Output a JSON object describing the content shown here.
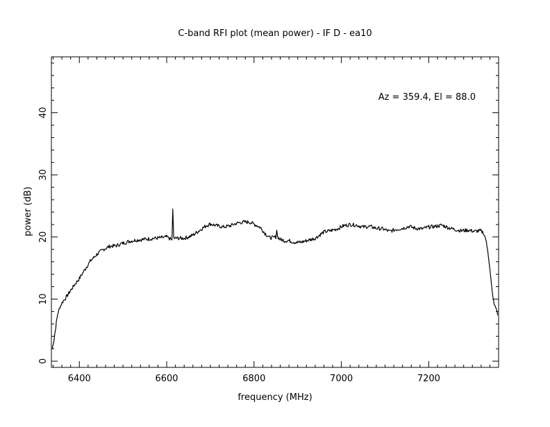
{
  "chart_data": {
    "type": "line",
    "title": "C-band RFI plot (mean power) - IF D - ea10",
    "annotation": "Az = 359.4, El = 88.0",
    "xlabel": "frequency (MHz)",
    "ylabel": "power (dB)",
    "xlim": [
      6336,
      7360
    ],
    "ylim": [
      -1,
      49
    ],
    "xticks": [
      6400,
      6600,
      6800,
      7000,
      7200
    ],
    "xtick_labels": [
      "6400",
      "6600",
      "6800",
      "7000",
      "7200"
    ],
    "yticks": [
      0,
      10,
      20,
      30,
      40
    ],
    "ytick_labels": [
      "0",
      "10",
      "20",
      "30",
      "40"
    ],
    "grid": false,
    "line_color": "#000000",
    "series": [
      {
        "x": [
          6338,
          6342,
          6346,
          6350,
          6356,
          6362,
          6370,
          6380,
          6390,
          6400,
          6412,
          6425,
          6440,
          6455,
          6470,
          6485,
          6500,
          6515,
          6530,
          6545,
          6560,
          6575,
          6590,
          6600,
          6608,
          6612,
          6614,
          6616,
          6618,
          6620,
          6630,
          6640,
          6650,
          6660,
          6670,
          6680,
          6690,
          6700,
          6715,
          6730,
          6745,
          6760,
          6775,
          6790,
          6805,
          6815,
          6825,
          6835,
          6845,
          6850,
          6852,
          6854,
          6860,
          6870,
          6880,
          6890,
          6900,
          6910,
          6920,
          6930,
          6940,
          6950,
          6960,
          6975,
          6990,
          7005,
          7020,
          7035,
          7050,
          7065,
          7080,
          7095,
          7110,
          7125,
          7140,
          7155,
          7170,
          7185,
          7200,
          7215,
          7230,
          7245,
          7260,
          7275,
          7290,
          7305,
          7318,
          7325,
          7330,
          7335,
          7340,
          7345,
          7350,
          7355,
          7358
        ],
        "y": [
          2.0,
          3.5,
          5.5,
          7.5,
          8.8,
          9.6,
          10.3,
          11.4,
          12.4,
          13.3,
          14.7,
          16.1,
          17.2,
          18.0,
          18.5,
          18.6,
          19.0,
          19.3,
          19.5,
          19.6,
          19.7,
          19.8,
          19.9,
          20.0,
          19.7,
          19.5,
          24.5,
          20.0,
          19.6,
          19.8,
          19.8,
          19.8,
          20.0,
          20.3,
          20.8,
          21.3,
          21.8,
          22.1,
          21.8,
          21.6,
          21.8,
          22.2,
          22.4,
          22.4,
          21.9,
          21.5,
          20.6,
          19.9,
          19.9,
          20.0,
          21.2,
          20.0,
          19.6,
          19.4,
          19.4,
          19.2,
          19.1,
          19.2,
          19.4,
          19.6,
          19.8,
          20.3,
          20.8,
          21.0,
          21.3,
          21.8,
          22.0,
          21.9,
          21.6,
          21.7,
          21.4,
          21.3,
          20.9,
          21.2,
          21.4,
          21.7,
          21.4,
          21.3,
          21.6,
          21.7,
          21.9,
          21.5,
          21.2,
          21.0,
          21.1,
          20.9,
          21.0,
          20.7,
          19.8,
          17.8,
          14.8,
          11.5,
          9.2,
          8.2,
          7.4
        ]
      }
    ]
  }
}
